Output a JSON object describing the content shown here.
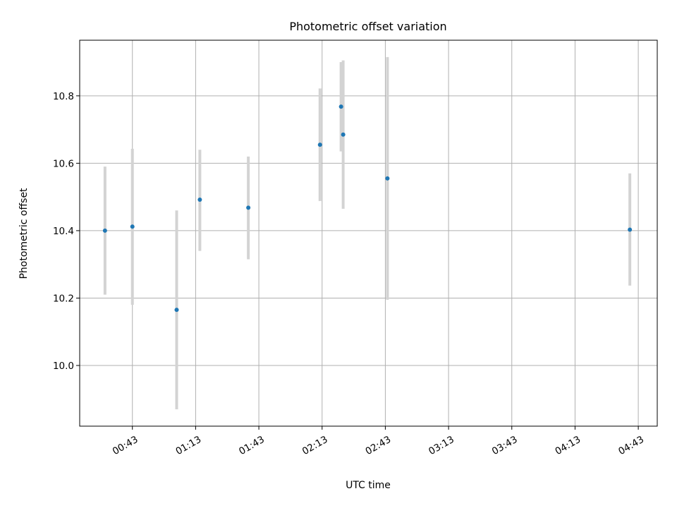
{
  "chart_data": {
    "type": "scatter",
    "title": "Photometric offset variation",
    "xlabel": "UTC time",
    "ylabel": "Photometric offset",
    "x_ticks": [
      "00:43",
      "01:13",
      "01:43",
      "02:13",
      "02:43",
      "03:13",
      "03:43",
      "04:13",
      "04:43"
    ],
    "xlim": [
      "00:18",
      "04:52"
    ],
    "y_ticks": [
      "10.0",
      "10.2",
      "10.4",
      "10.6",
      "10.8"
    ],
    "ylim": [
      9.82,
      10.965
    ],
    "grid": true,
    "colors": {
      "points": "#1f77b4",
      "errorbars": "#d3d3d3",
      "grid": "#b0b0b0"
    },
    "points": [
      {
        "x": "00:30",
        "y": 10.4,
        "yerr_low": 10.21,
        "yerr_high": 10.59
      },
      {
        "x": "00:43",
        "y": 10.412,
        "yerr_low": 10.18,
        "yerr_high": 10.643
      },
      {
        "x": "01:04",
        "y": 10.165,
        "yerr_low": 9.87,
        "yerr_high": 10.46
      },
      {
        "x": "01:15",
        "y": 10.492,
        "yerr_low": 10.34,
        "yerr_high": 10.64
      },
      {
        "x": "01:38",
        "y": 10.468,
        "yerr_low": 10.315,
        "yerr_high": 10.62
      },
      {
        "x": "02:12",
        "y": 10.655,
        "yerr_low": 10.488,
        "yerr_high": 10.822
      },
      {
        "x": "02:22",
        "y": 10.768,
        "yerr_low": 10.635,
        "yerr_high": 10.9
      },
      {
        "x": "02:23",
        "y": 10.685,
        "yerr_low": 10.465,
        "yerr_high": 10.905
      },
      {
        "x": "02:44",
        "y": 10.555,
        "yerr_low": 10.195,
        "yerr_high": 10.915
      },
      {
        "x": "04:39",
        "y": 10.403,
        "yerr_low": 10.237,
        "yerr_high": 10.57
      }
    ]
  }
}
